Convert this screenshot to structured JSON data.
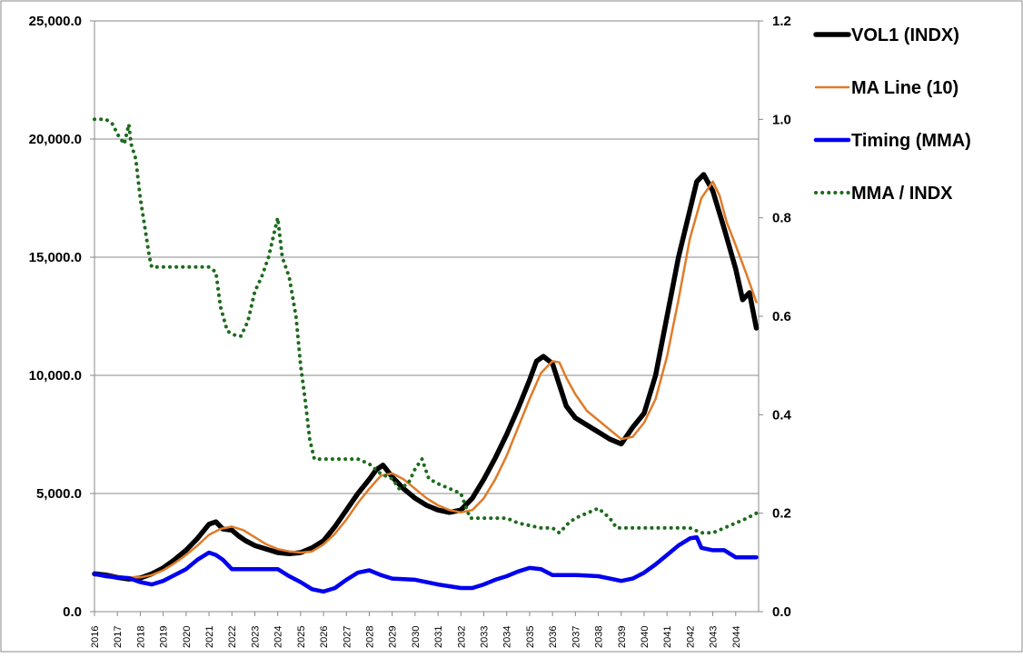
{
  "chart_data": {
    "type": "line",
    "title": "",
    "xlabel": "",
    "ylabel": "",
    "x_ticks": [
      "2016",
      "2017",
      "2018",
      "2019",
      "2020",
      "2021",
      "2022",
      "2023",
      "2024",
      "2025",
      "2026",
      "2027",
      "2028",
      "2029",
      "2030",
      "2031",
      "2032",
      "2033",
      "2034",
      "2035",
      "2036",
      "2037",
      "2038",
      "2039",
      "2040",
      "2041",
      "2042",
      "2043",
      "2044"
    ],
    "x_range": [
      2016.0,
      2045.0
    ],
    "y_left": {
      "ticks": [
        "0.0",
        "5,000.0",
        "10,000.0",
        "15,000.0",
        "20,000.0",
        "25,000.0"
      ],
      "range": [
        0,
        25000
      ]
    },
    "y_right": {
      "ticks": [
        "0.0",
        "0.2",
        "0.4",
        "0.6",
        "0.8",
        "1.0",
        "1.2"
      ],
      "range": [
        0,
        1.2
      ]
    },
    "grid": "horizontal",
    "legend_position": "right",
    "series": [
      {
        "name": "VOL1 (INDX)",
        "axis": "left",
        "color": "#000000",
        "style": "solid",
        "points": [
          [
            2016.0,
            1600
          ],
          [
            2016.5,
            1550
          ],
          [
            2017.0,
            1450
          ],
          [
            2017.5,
            1380
          ],
          [
            2018.0,
            1420
          ],
          [
            2018.5,
            1600
          ],
          [
            2019.0,
            1850
          ],
          [
            2019.5,
            2200
          ],
          [
            2020.0,
            2600
          ],
          [
            2020.5,
            3100
          ],
          [
            2021.0,
            3700
          ],
          [
            2021.3,
            3800
          ],
          [
            2021.6,
            3500
          ],
          [
            2022.0,
            3450
          ],
          [
            2022.3,
            3200
          ],
          [
            2022.6,
            3000
          ],
          [
            2023.0,
            2800
          ],
          [
            2023.5,
            2650
          ],
          [
            2024.0,
            2500
          ],
          [
            2024.5,
            2450
          ],
          [
            2025.0,
            2500
          ],
          [
            2025.5,
            2700
          ],
          [
            2026.0,
            3000
          ],
          [
            2026.5,
            3600
          ],
          [
            2027.0,
            4300
          ],
          [
            2027.5,
            5000
          ],
          [
            2028.0,
            5600
          ],
          [
            2028.3,
            6000
          ],
          [
            2028.6,
            6200
          ],
          [
            2029.0,
            5700
          ],
          [
            2029.5,
            5200
          ],
          [
            2030.0,
            4800
          ],
          [
            2030.5,
            4500
          ],
          [
            2031.0,
            4300
          ],
          [
            2031.5,
            4200
          ],
          [
            2032.0,
            4300
          ],
          [
            2032.5,
            4800
          ],
          [
            2033.0,
            5600
          ],
          [
            2033.5,
            6500
          ],
          [
            2034.0,
            7500
          ],
          [
            2034.5,
            8600
          ],
          [
            2035.0,
            9800
          ],
          [
            2035.3,
            10600
          ],
          [
            2035.6,
            10800
          ],
          [
            2036.0,
            10500
          ],
          [
            2036.3,
            9600
          ],
          [
            2036.6,
            8700
          ],
          [
            2037.0,
            8200
          ],
          [
            2037.5,
            7900
          ],
          [
            2038.0,
            7600
          ],
          [
            2038.5,
            7300
          ],
          [
            2039.0,
            7100
          ],
          [
            2039.5,
            7800
          ],
          [
            2040.0,
            8400
          ],
          [
            2040.5,
            10000
          ],
          [
            2041.0,
            12500
          ],
          [
            2041.5,
            15000
          ],
          [
            2042.0,
            17000
          ],
          [
            2042.3,
            18200
          ],
          [
            2042.6,
            18500
          ],
          [
            2043.0,
            17800
          ],
          [
            2043.5,
            16200
          ],
          [
            2044.0,
            14500
          ],
          [
            2044.3,
            13200
          ],
          [
            2044.6,
            13500
          ],
          [
            2044.9,
            12000
          ]
        ]
      },
      {
        "name": "MA Line (10)",
        "axis": "left",
        "color": "#e07b28",
        "style": "solid",
        "points": [
          [
            2016.0,
            1600
          ],
          [
            2016.5,
            1550
          ],
          [
            2017.0,
            1500
          ],
          [
            2017.5,
            1450
          ],
          [
            2018.0,
            1450
          ],
          [
            2018.5,
            1550
          ],
          [
            2019.0,
            1750
          ],
          [
            2019.5,
            2050
          ],
          [
            2020.0,
            2400
          ],
          [
            2020.5,
            2800
          ],
          [
            2021.0,
            3250
          ],
          [
            2021.5,
            3500
          ],
          [
            2022.0,
            3600
          ],
          [
            2022.5,
            3450
          ],
          [
            2023.0,
            3150
          ],
          [
            2023.5,
            2850
          ],
          [
            2024.0,
            2650
          ],
          [
            2024.5,
            2550
          ],
          [
            2025.0,
            2500
          ],
          [
            2025.5,
            2550
          ],
          [
            2026.0,
            2850
          ],
          [
            2026.5,
            3300
          ],
          [
            2027.0,
            3900
          ],
          [
            2027.5,
            4600
          ],
          [
            2028.0,
            5200
          ],
          [
            2028.5,
            5750
          ],
          [
            2029.0,
            5850
          ],
          [
            2029.5,
            5600
          ],
          [
            2030.0,
            5200
          ],
          [
            2030.5,
            4800
          ],
          [
            2031.0,
            4500
          ],
          [
            2031.5,
            4300
          ],
          [
            2032.0,
            4200
          ],
          [
            2032.5,
            4300
          ],
          [
            2033.0,
            4800
          ],
          [
            2033.5,
            5600
          ],
          [
            2034.0,
            6600
          ],
          [
            2034.5,
            7800
          ],
          [
            2035.0,
            9000
          ],
          [
            2035.5,
            10100
          ],
          [
            2036.0,
            10600
          ],
          [
            2036.3,
            10550
          ],
          [
            2036.6,
            9900
          ],
          [
            2037.0,
            9200
          ],
          [
            2037.5,
            8500
          ],
          [
            2038.0,
            8100
          ],
          [
            2038.5,
            7700
          ],
          [
            2039.0,
            7300
          ],
          [
            2039.5,
            7400
          ],
          [
            2040.0,
            8000
          ],
          [
            2040.5,
            9000
          ],
          [
            2041.0,
            10800
          ],
          [
            2041.5,
            13200
          ],
          [
            2042.0,
            15800
          ],
          [
            2042.5,
            17500
          ],
          [
            2043.0,
            18200
          ],
          [
            2043.3,
            17600
          ],
          [
            2043.6,
            16500
          ],
          [
            2044.0,
            15500
          ],
          [
            2044.5,
            14200
          ],
          [
            2044.9,
            13100
          ]
        ]
      },
      {
        "name": "Timing (MMA)",
        "axis": "left",
        "color": "#0000ee",
        "style": "solid",
        "points": [
          [
            2016.0,
            1600
          ],
          [
            2016.5,
            1500
          ],
          [
            2017.0,
            1450
          ],
          [
            2017.5,
            1420
          ],
          [
            2018.0,
            1250
          ],
          [
            2018.5,
            1150
          ],
          [
            2019.0,
            1300
          ],
          [
            2019.5,
            1550
          ],
          [
            2020.0,
            1800
          ],
          [
            2020.5,
            2200
          ],
          [
            2021.0,
            2500
          ],
          [
            2021.3,
            2400
          ],
          [
            2021.6,
            2200
          ],
          [
            2022.0,
            1800
          ],
          [
            2023.0,
            1800
          ],
          [
            2024.0,
            1800
          ],
          [
            2024.5,
            1500
          ],
          [
            2025.0,
            1250
          ],
          [
            2025.5,
            950
          ],
          [
            2026.0,
            850
          ],
          [
            2026.5,
            1000
          ],
          [
            2027.0,
            1350
          ],
          [
            2027.5,
            1650
          ],
          [
            2028.0,
            1750
          ],
          [
            2028.5,
            1550
          ],
          [
            2029.0,
            1400
          ],
          [
            2030.0,
            1350
          ],
          [
            2031.0,
            1150
          ],
          [
            2032.0,
            1000
          ],
          [
            2032.5,
            1000
          ],
          [
            2033.0,
            1150
          ],
          [
            2033.5,
            1350
          ],
          [
            2034.0,
            1500
          ],
          [
            2034.5,
            1700
          ],
          [
            2035.0,
            1850
          ],
          [
            2035.5,
            1800
          ],
          [
            2036.0,
            1550
          ],
          [
            2037.0,
            1550
          ],
          [
            2038.0,
            1500
          ],
          [
            2038.5,
            1400
          ],
          [
            2039.0,
            1300
          ],
          [
            2039.5,
            1400
          ],
          [
            2040.0,
            1650
          ],
          [
            2040.5,
            2000
          ],
          [
            2041.0,
            2400
          ],
          [
            2041.5,
            2800
          ],
          [
            2042.0,
            3100
          ],
          [
            2042.3,
            3150
          ],
          [
            2042.5,
            2700
          ],
          [
            2043.0,
            2600
          ],
          [
            2043.5,
            2600
          ],
          [
            2044.0,
            2300
          ],
          [
            2044.9,
            2300
          ]
        ]
      },
      {
        "name": "MMA / INDX",
        "axis": "right",
        "color": "#1e6b1e",
        "style": "dotted",
        "points": [
          [
            2016.0,
            1.0
          ],
          [
            2016.5,
            1.0
          ],
          [
            2016.8,
            0.99
          ],
          [
            2017.0,
            0.97
          ],
          [
            2017.3,
            0.95
          ],
          [
            2017.5,
            0.99
          ],
          [
            2017.6,
            0.95
          ],
          [
            2017.8,
            0.92
          ],
          [
            2018.0,
            0.84
          ],
          [
            2018.2,
            0.78
          ],
          [
            2018.4,
            0.72
          ],
          [
            2018.5,
            0.7
          ],
          [
            2021.0,
            0.7
          ],
          [
            2021.3,
            0.69
          ],
          [
            2021.5,
            0.62
          ],
          [
            2021.8,
            0.57
          ],
          [
            2022.2,
            0.56
          ],
          [
            2022.4,
            0.56
          ],
          [
            2022.7,
            0.59
          ],
          [
            2023.0,
            0.65
          ],
          [
            2023.3,
            0.68
          ],
          [
            2023.6,
            0.72
          ],
          [
            2023.9,
            0.78
          ],
          [
            2024.0,
            0.8
          ],
          [
            2024.2,
            0.72
          ],
          [
            2024.5,
            0.68
          ],
          [
            2024.8,
            0.6
          ],
          [
            2025.0,
            0.5
          ],
          [
            2025.2,
            0.43
          ],
          [
            2025.4,
            0.35
          ],
          [
            2025.6,
            0.31
          ],
          [
            2027.0,
            0.31
          ],
          [
            2027.5,
            0.31
          ],
          [
            2028.0,
            0.3
          ],
          [
            2028.5,
            0.28
          ],
          [
            2029.0,
            0.27
          ],
          [
            2029.3,
            0.25
          ],
          [
            2029.7,
            0.26
          ],
          [
            2030.0,
            0.29
          ],
          [
            2030.3,
            0.31
          ],
          [
            2030.6,
            0.27
          ],
          [
            2031.0,
            0.26
          ],
          [
            2031.5,
            0.25
          ],
          [
            2032.0,
            0.24
          ],
          [
            2032.4,
            0.19
          ],
          [
            2034.0,
            0.19
          ],
          [
            2034.5,
            0.18
          ],
          [
            2035.5,
            0.17
          ],
          [
            2036.0,
            0.17
          ],
          [
            2036.3,
            0.16
          ],
          [
            2036.7,
            0.18
          ],
          [
            2037.0,
            0.19
          ],
          [
            2037.5,
            0.2
          ],
          [
            2038.0,
            0.21
          ],
          [
            2038.5,
            0.19
          ],
          [
            2038.8,
            0.17
          ],
          [
            2040.0,
            0.17
          ],
          [
            2041.0,
            0.17
          ],
          [
            2042.0,
            0.17
          ],
          [
            2042.5,
            0.16
          ],
          [
            2043.0,
            0.16
          ],
          [
            2043.5,
            0.17
          ],
          [
            2044.0,
            0.18
          ],
          [
            2044.5,
            0.19
          ],
          [
            2044.9,
            0.2
          ]
        ]
      }
    ]
  }
}
